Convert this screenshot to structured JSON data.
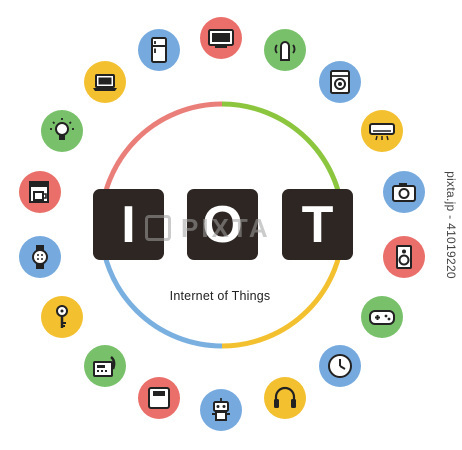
{
  "title": {
    "letters": [
      "I",
      "O",
      "T"
    ],
    "subtitle": "Internet of Things"
  },
  "ring_colors": {
    "top_right": "#8cc63f",
    "right": "#f3c02f",
    "bottom": "#7ab0e0",
    "left": "#ea7f7a"
  },
  "icon_colors": {
    "red": "#ea6f6a",
    "green": "#78c16a",
    "blue": "#76aadf",
    "yellow": "#f3c02f"
  },
  "icons": [
    {
      "name": "tv-icon",
      "color": "#ea6f6a"
    },
    {
      "name": "smart-speaker-icon",
      "color": "#78c16a"
    },
    {
      "name": "washing-machine-icon",
      "color": "#76aadf"
    },
    {
      "name": "air-conditioner-icon",
      "color": "#f3c02f"
    },
    {
      "name": "camera-icon",
      "color": "#76aadf"
    },
    {
      "name": "speaker-icon",
      "color": "#ea6f6a"
    },
    {
      "name": "game-controller-icon",
      "color": "#78c16a"
    },
    {
      "name": "clock-icon",
      "color": "#76aadf"
    },
    {
      "name": "headphones-icon",
      "color": "#f3c02f"
    },
    {
      "name": "robot-icon",
      "color": "#76aadf"
    },
    {
      "name": "scale-icon",
      "color": "#ea6f6a"
    },
    {
      "name": "fax-phone-icon",
      "color": "#78c16a"
    },
    {
      "name": "key-icon",
      "color": "#f3c02f"
    },
    {
      "name": "smartwatch-icon",
      "color": "#76aadf"
    },
    {
      "name": "coffee-maker-icon",
      "color": "#ea6f6a"
    },
    {
      "name": "light-bulb-icon",
      "color": "#78c16a"
    },
    {
      "name": "laptop-icon",
      "color": "#f3c02f"
    },
    {
      "name": "refrigerator-icon",
      "color": "#76aadf"
    }
  ],
  "watermark": {
    "side_text": "pixta.jp - 41019220",
    "overlay_text": "PIXTA"
  }
}
